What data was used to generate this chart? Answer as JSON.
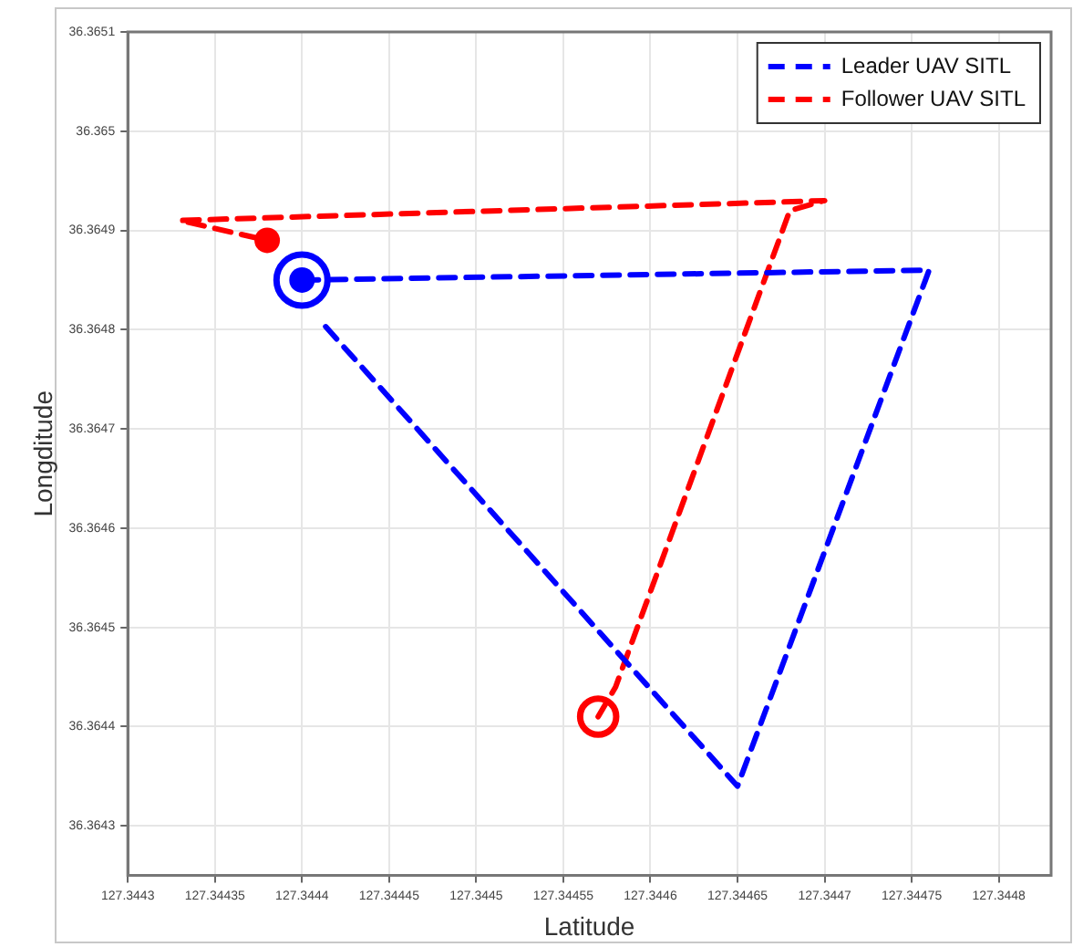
{
  "chart_data": {
    "type": "line",
    "xlabel": "Latitude",
    "ylabel": "Longditude",
    "xlim": [
      127.3443,
      127.34483
    ],
    "ylim": [
      36.36425,
      36.3651
    ],
    "xticks": [
      127.3443,
      127.34435,
      127.3444,
      127.34445,
      127.3445,
      127.34455,
      127.3446,
      127.34465,
      127.3447,
      127.34475,
      127.3448
    ],
    "yticks": [
      36.3643,
      36.3644,
      36.3645,
      36.3646,
      36.3647,
      36.3648,
      36.3649,
      36.365,
      36.3651
    ],
    "grid": true,
    "legend": "top right",
    "line_style": "dashed",
    "marker": "none",
    "series": [
      {
        "name": "Leader UAV SITL",
        "color": "#0000ff",
        "x": [
          127.3444,
          127.34476,
          127.34465,
          127.34441
        ],
        "values": [
          36.36485,
          36.36486,
          36.36434,
          36.36481
        ]
      },
      {
        "name": "Follower UAV SITL",
        "color": "#ff0000",
        "x": [
          127.34457,
          127.34458,
          127.34468,
          127.3447,
          127.34433,
          127.34438
        ],
        "values": [
          36.36441,
          36.36444,
          36.36492,
          36.36493,
          36.36491,
          36.36489
        ]
      },
      {
        "type": "scatter",
        "marker": "circle",
        "color": "#0000ff",
        "x": [
          127.3444
        ],
        "values": [
          36.36485
        ]
      },
      {
        "type": "bubble",
        "marker": "circle",
        "color": "#0000ff",
        "x": [
          127.3444
        ],
        "values": [
          36.36485
        ],
        "sizes": [
          1
        ]
      },
      {
        "type": "scatter",
        "marker": "circle",
        "color": "#ff0000",
        "x": [
          127.34438
        ],
        "values": [
          36.36489
        ]
      },
      {
        "type": "bubble",
        "marker": "circle",
        "color": "#ff0000",
        "x": [
          127.34457
        ],
        "values": [
          36.36441
        ],
        "sizes": [
          0.5
        ]
      }
    ]
  }
}
